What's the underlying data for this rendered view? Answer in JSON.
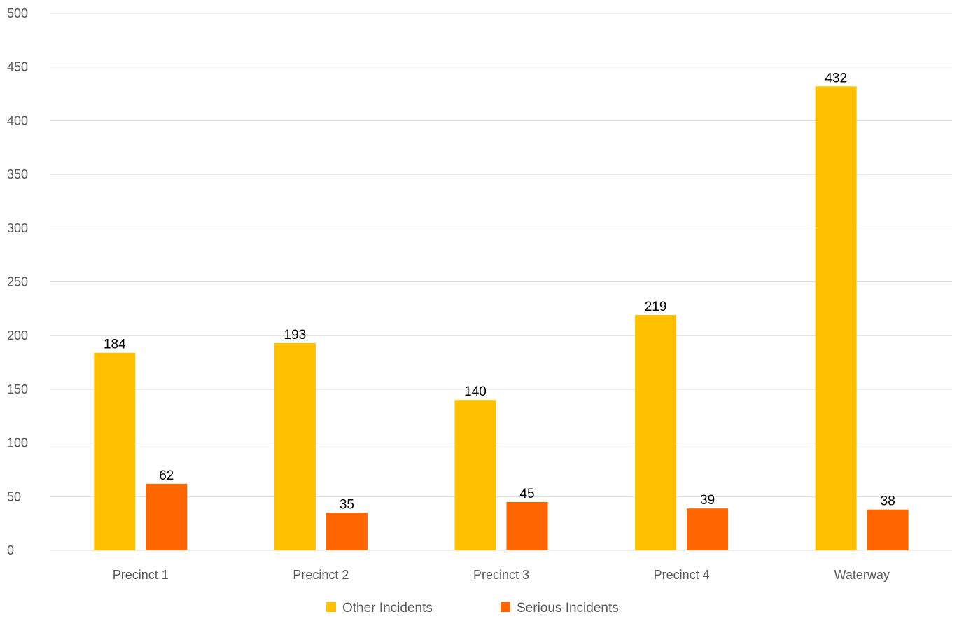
{
  "chart_data": {
    "type": "bar",
    "title": "",
    "xlabel": "",
    "ylabel": "",
    "categories": [
      "Precinct 1",
      "Precinct 2",
      "Precinct 3",
      "Precinct 4",
      "Waterway"
    ],
    "series": [
      {
        "name": "Other Incidents",
        "values": [
          184,
          193,
          140,
          219,
          432
        ],
        "color": "#FFC000"
      },
      {
        "name": "Serious Incidents",
        "values": [
          62,
          35,
          45,
          39,
          38
        ],
        "color": "#FF6600"
      }
    ],
    "ylim": [
      0,
      500
    ],
    "yticks": [
      "0",
      "50",
      "100",
      "150",
      "200",
      "250",
      "300",
      "350",
      "400",
      "450",
      "500"
    ],
    "grid": true,
    "gridline_color": "#D9D9D9",
    "legend_position": "bottom",
    "data_labels": true
  }
}
